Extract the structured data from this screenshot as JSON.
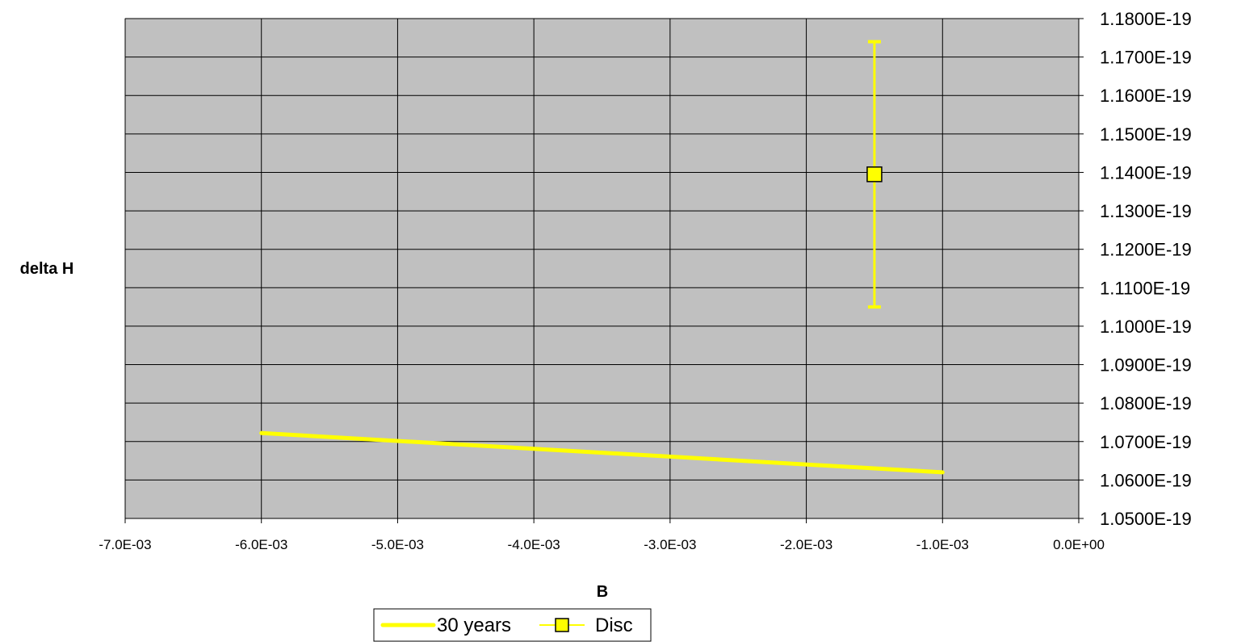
{
  "chart_data": {
    "type": "scatter",
    "title": "",
    "xlabel": "B",
    "ylabel": "delta H",
    "xlim": [
      -0.007,
      0.0
    ],
    "ylim": [
      1.05e-19,
      1.18e-19
    ],
    "x_ticks": [
      -0.007,
      -0.006,
      -0.005,
      -0.004,
      -0.003,
      -0.002,
      -0.001,
      0.0
    ],
    "x_tick_labels": [
      "-7.0E-03",
      "-6.0E-03",
      "-5.0E-03",
      "-4.0E-03",
      "-3.0E-03",
      "-2.0E-03",
      "-1.0E-03",
      "0.0E+00"
    ],
    "y_ticks": [
      1.05e-19,
      1.06e-19,
      1.07e-19,
      1.08e-19,
      1.09e-19,
      1.1e-19,
      1.11e-19,
      1.12e-19,
      1.13e-19,
      1.14e-19,
      1.15e-19,
      1.16e-19,
      1.17e-19,
      1.18e-19
    ],
    "y_tick_labels": [
      "1.0500E-19",
      "1.0600E-19",
      "1.0700E-19",
      "1.0800E-19",
      "1.0900E-19",
      "1.1000E-19",
      "1.1100E-19",
      "1.1200E-19",
      "1.1300E-19",
      "1.1400E-19",
      "1.1500E-19",
      "1.1600E-19",
      "1.1700E-19",
      "1.1800E-19"
    ],
    "y_axis_side": "right",
    "grid": true,
    "plot_background": "#c0c0c0",
    "legend_position": "bottom",
    "series": [
      {
        "name": "30 years",
        "style": "line",
        "color": "#ffff00",
        "x": [
          -0.006,
          -0.001
        ],
        "y": [
          1.0722e-19,
          1.062e-19
        ]
      },
      {
        "name": "Disc",
        "style": "marker",
        "marker": "square",
        "color": "#ffff00",
        "x": [
          -0.0015
        ],
        "y": [
          1.1395e-19
        ],
        "y_error": [
          3.45e-21
        ]
      }
    ]
  }
}
